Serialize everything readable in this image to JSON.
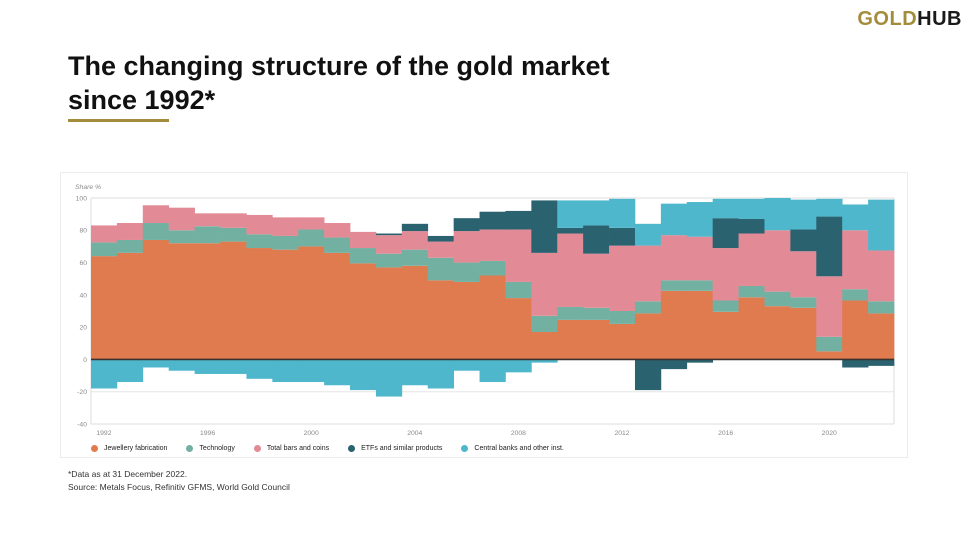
{
  "header": {
    "logo_gold": "GOLD",
    "logo_hub": "HUB"
  },
  "title": {
    "line1": "The changing structure of the gold market",
    "line2": "since 1992*"
  },
  "footnote": "*Data as at 31 December 2022.",
  "source": "Source: Metals Focus, Refinitiv GFMS, World Gold Council",
  "accent_color": "#a38d3d",
  "chart_data": {
    "type": "bar",
    "stacked": true,
    "title": "",
    "ylabel": "Share %",
    "xlabel": "",
    "ylim": [
      -40,
      100
    ],
    "ytick_interval": 20,
    "yticks": [
      100,
      80,
      60,
      40,
      20,
      0,
      -20,
      -40
    ],
    "grid": "top, -20 and -40 gridlines only, dark zero line",
    "legend_position": "bottom",
    "x": [
      1992,
      1993,
      1994,
      1995,
      1996,
      1997,
      1998,
      1999,
      2000,
      2001,
      2002,
      2003,
      2004,
      2005,
      2006,
      2007,
      2008,
      2009,
      2010,
      2011,
      2012,
      2013,
      2014,
      2015,
      2016,
      2017,
      2018,
      2019,
      2020,
      2021,
      2022
    ],
    "xticks": [
      1992,
      1996,
      2000,
      2004,
      2008,
      2012,
      2016,
      2020
    ],
    "series": [
      {
        "name": "Jewellery fabrication",
        "color": "#e07b4f",
        "values": [
          64,
          66,
          74,
          72,
          72,
          73,
          69,
          68,
          70,
          66,
          59.5,
          57,
          58,
          49,
          48,
          52,
          38,
          17,
          24.5,
          24.5,
          22,
          28.5,
          42.5,
          42.5,
          29.5,
          38.5,
          33,
          32,
          5,
          36.5,
          28.5
        ]
      },
      {
        "name": "Technology",
        "color": "#72b1a2",
        "values": [
          8.5,
          8,
          10.5,
          8,
          10.5,
          8.5,
          8.5,
          8.5,
          10.5,
          9.5,
          9.5,
          8.5,
          10,
          14,
          12,
          9,
          10,
          10,
          8,
          7.5,
          8,
          7.5,
          6.5,
          6.5,
          7,
          7,
          9,
          6.5,
          9,
          7,
          7.5
        ]
      },
      {
        "name": "Total bars and coins",
        "color": "#e28b96",
        "values": [
          10.5,
          10.5,
          11,
          14,
          8,
          9,
          12,
          11.5,
          7.5,
          9,
          10,
          11.5,
          11.5,
          10,
          19.5,
          19.5,
          32.5,
          39,
          45.5,
          33.5,
          40.5,
          34.5,
          28,
          27,
          32.5,
          32.5,
          38,
          28.5,
          37.5,
          36.5,
          31.5
        ]
      },
      {
        "name": "ETFs and similar products",
        "color": "#2b6270",
        "values": [
          0,
          0,
          0,
          0,
          0,
          0,
          0,
          0,
          0,
          0,
          0,
          1,
          4.5,
          3.5,
          8,
          11,
          11.5,
          32.5,
          3.5,
          17.5,
          11,
          -19,
          -6,
          -2,
          18.5,
          9,
          0,
          13.5,
          37,
          -5,
          -4
        ]
      },
      {
        "name": "Central banks and other inst.",
        "color": "#4fb7cc",
        "values": [
          -18,
          -14,
          -5,
          -7,
          -9,
          -9,
          -12,
          -14,
          -14,
          -16,
          -19,
          -23,
          -16,
          -18,
          -7,
          -14,
          -8,
          -2,
          17,
          15.5,
          18,
          13.5,
          19.5,
          21.5,
          12,
          12.5,
          20,
          18.5,
          11,
          16,
          31.5
        ]
      }
    ]
  }
}
